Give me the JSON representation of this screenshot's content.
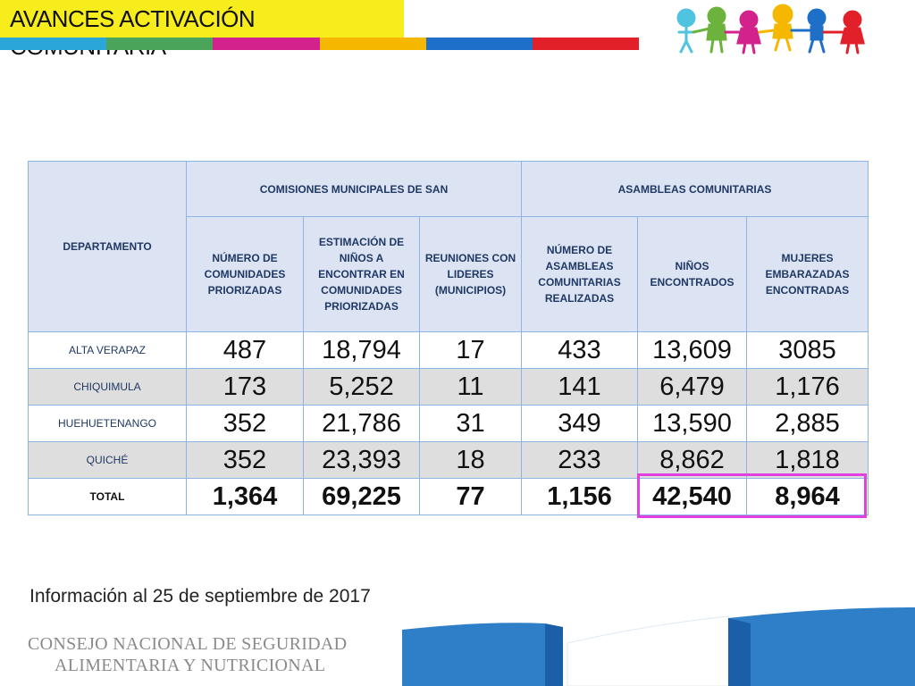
{
  "header": {
    "title": "AVANCES ACTIVACIÓN COMUNITARIA",
    "stripe_colors": [
      "#2aa6d9",
      "#4aa55a",
      "#d4228c",
      "#f5b700",
      "#1e6fc8",
      "#e2202a"
    ]
  },
  "table": {
    "dept_header": "DEPARTAMENTO",
    "group_headers": [
      "COMISIONES MUNICIPALES DE SAN",
      "ASAMBLEAS COMUNITARIAS"
    ],
    "sub_headers": [
      "NÚMERO DE COMUNIDADES PRIORIZADAS",
      "ESTIMACIÓN DE NIÑOS A ENCONTRAR EN COMUNIDADES PRIORIZADAS",
      "REUNIONES CON LIDERES (MUNICIPIOS)",
      "NÚMERO DE ASAMBLEAS COMUNITARIAS REALIZADAS",
      "NIÑOS ENCONTRADOS",
      "MUJERES EMBARAZADAS ENCONTRADAS"
    ],
    "rows": [
      {
        "dept": "ALTA VERAPAZ",
        "values": [
          "487",
          "18,794",
          "17",
          "433",
          "13,609",
          "3085"
        ]
      },
      {
        "dept": "CHIQUIMULA",
        "values": [
          "173",
          "5,252",
          "11",
          "141",
          "6,479",
          "1,176"
        ]
      },
      {
        "dept": "HUEHUETENANGO",
        "values": [
          "352",
          "21,786",
          "31",
          "349",
          "13,590",
          "2,885"
        ]
      },
      {
        "dept": "QUICHÉ",
        "values": [
          "352",
          "23,393",
          "18",
          "233",
          "8,862",
          "1,818"
        ]
      }
    ],
    "total": {
      "dept": "TOTAL",
      "values": [
        "1,364",
        "69,225",
        "77",
        "1,156",
        "42,540",
        "8,964"
      ]
    },
    "highlight_color": "#e040e0"
  },
  "info_text": "Información al 25 de septiembre de 2017",
  "organization": {
    "line1": "CONSEJO NACIONAL DE SEGURIDAD",
    "line2": "ALIMENTARIA Y NUTRICIONAL"
  },
  "decorations": {
    "kids_icon": "children-holding-hands-icon",
    "footer_wave_color": "#2f7fc8"
  }
}
